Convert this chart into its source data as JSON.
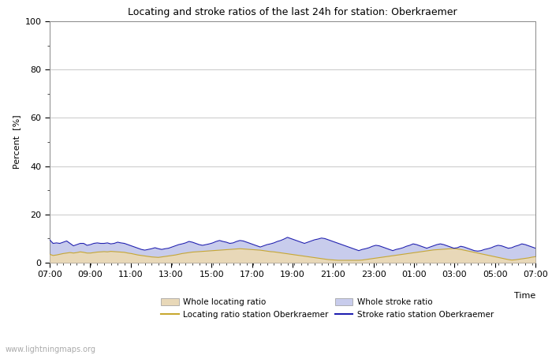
{
  "title": "Locating and stroke ratios of the last 24h for station: Oberkraemer",
  "xlabel": "Time",
  "ylabel": "Percent  [%]",
  "ylim": [
    0,
    100
  ],
  "yticks_major": [
    0,
    20,
    40,
    60,
    80,
    100
  ],
  "yticks_minor": [
    10,
    30,
    50,
    70,
    90
  ],
  "background_color": "#ffffff",
  "plot_bg_color": "#ffffff",
  "grid_color": "#c8c8c8",
  "watermark": "www.lightningmaps.org",
  "time_labels": [
    "07:00",
    "09:00",
    "11:00",
    "13:00",
    "15:00",
    "17:00",
    "19:00",
    "21:00",
    "23:00",
    "01:00",
    "03:00",
    "05:00",
    "07:00"
  ],
  "whole_locating_color": "#e8d8b8",
  "whole_stroke_color": "#c8ccec",
  "locating_line_color": "#c8a830",
  "stroke_line_color": "#2020b0",
  "whole_locating_ratio": [
    3.5,
    3.0,
    3.2,
    3.5,
    3.8,
    4.0,
    4.2,
    4.0,
    4.2,
    4.5,
    4.3,
    4.0,
    4.0,
    4.2,
    4.4,
    4.5,
    4.6,
    4.5,
    4.7,
    4.6,
    4.5,
    4.4,
    4.3,
    4.0,
    3.8,
    3.5,
    3.2,
    3.0,
    2.8,
    2.6,
    2.4,
    2.3,
    2.2,
    2.4,
    2.6,
    2.8,
    3.0,
    3.2,
    3.5,
    3.8,
    4.0,
    4.2,
    4.4,
    4.5,
    4.6,
    4.7,
    4.8,
    4.9,
    5.0,
    5.1,
    5.2,
    5.3,
    5.4,
    5.5,
    5.6,
    5.7,
    5.8,
    5.7,
    5.6,
    5.5,
    5.4,
    5.3,
    5.2,
    5.0,
    4.8,
    4.6,
    4.5,
    4.3,
    4.1,
    3.9,
    3.7,
    3.5,
    3.3,
    3.1,
    2.9,
    2.7,
    2.5,
    2.3,
    2.1,
    1.9,
    1.7,
    1.5,
    1.3,
    1.2,
    1.1,
    1.0,
    1.0,
    1.0,
    1.0,
    1.0,
    1.0,
    1.0,
    1.1,
    1.3,
    1.5,
    1.7,
    1.9,
    2.1,
    2.3,
    2.5,
    2.7,
    2.9,
    3.1,
    3.3,
    3.5,
    3.7,
    3.9,
    4.1,
    4.3,
    4.5,
    4.7,
    4.9,
    5.1,
    5.3,
    5.4,
    5.5,
    5.6,
    5.7,
    5.8,
    5.9,
    5.7,
    5.5,
    5.2,
    4.9,
    4.6,
    4.3,
    4.0,
    3.7,
    3.4,
    3.1,
    2.8,
    2.5,
    2.2,
    1.9,
    1.6,
    1.3,
    1.1,
    1.2,
    1.4,
    1.6,
    1.8,
    2.0,
    2.3,
    2.5
  ],
  "whole_stroke_ratio": [
    9.5,
    8.0,
    8.2,
    8.0,
    8.5,
    9.0,
    8.0,
    7.0,
    7.5,
    8.0,
    8.0,
    7.2,
    7.5,
    8.0,
    8.2,
    8.0,
    8.0,
    8.2,
    7.8,
    8.0,
    8.5,
    8.2,
    8.0,
    7.5,
    7.0,
    6.5,
    6.0,
    5.5,
    5.2,
    5.5,
    5.8,
    6.2,
    5.8,
    5.5,
    5.8,
    6.0,
    6.5,
    7.0,
    7.5,
    7.8,
    8.2,
    8.8,
    8.5,
    8.0,
    7.5,
    7.2,
    7.5,
    7.8,
    8.2,
    8.8,
    9.2,
    8.8,
    8.5,
    8.0,
    8.2,
    8.8,
    9.2,
    9.0,
    8.5,
    8.0,
    7.5,
    7.0,
    6.5,
    7.0,
    7.5,
    7.8,
    8.2,
    8.8,
    9.2,
    9.8,
    10.5,
    10.0,
    9.5,
    9.0,
    8.5,
    8.0,
    8.5,
    9.0,
    9.5,
    9.8,
    10.2,
    10.0,
    9.5,
    9.0,
    8.5,
    8.0,
    7.5,
    7.0,
    6.5,
    6.0,
    5.5,
    5.0,
    5.5,
    5.8,
    6.2,
    6.8,
    7.2,
    7.0,
    6.5,
    6.0,
    5.5,
    5.0,
    5.5,
    5.8,
    6.2,
    6.8,
    7.2,
    7.8,
    7.5,
    7.0,
    6.5,
    6.0,
    6.5,
    7.0,
    7.5,
    7.8,
    7.5,
    7.0,
    6.5,
    6.0,
    6.2,
    6.8,
    6.5,
    6.0,
    5.5,
    5.0,
    4.8,
    5.0,
    5.5,
    5.8,
    6.2,
    6.8,
    7.2,
    7.0,
    6.5,
    6.0,
    6.2,
    6.8,
    7.2,
    7.8,
    7.5,
    7.0,
    6.5,
    6.0
  ],
  "n_points": 144
}
